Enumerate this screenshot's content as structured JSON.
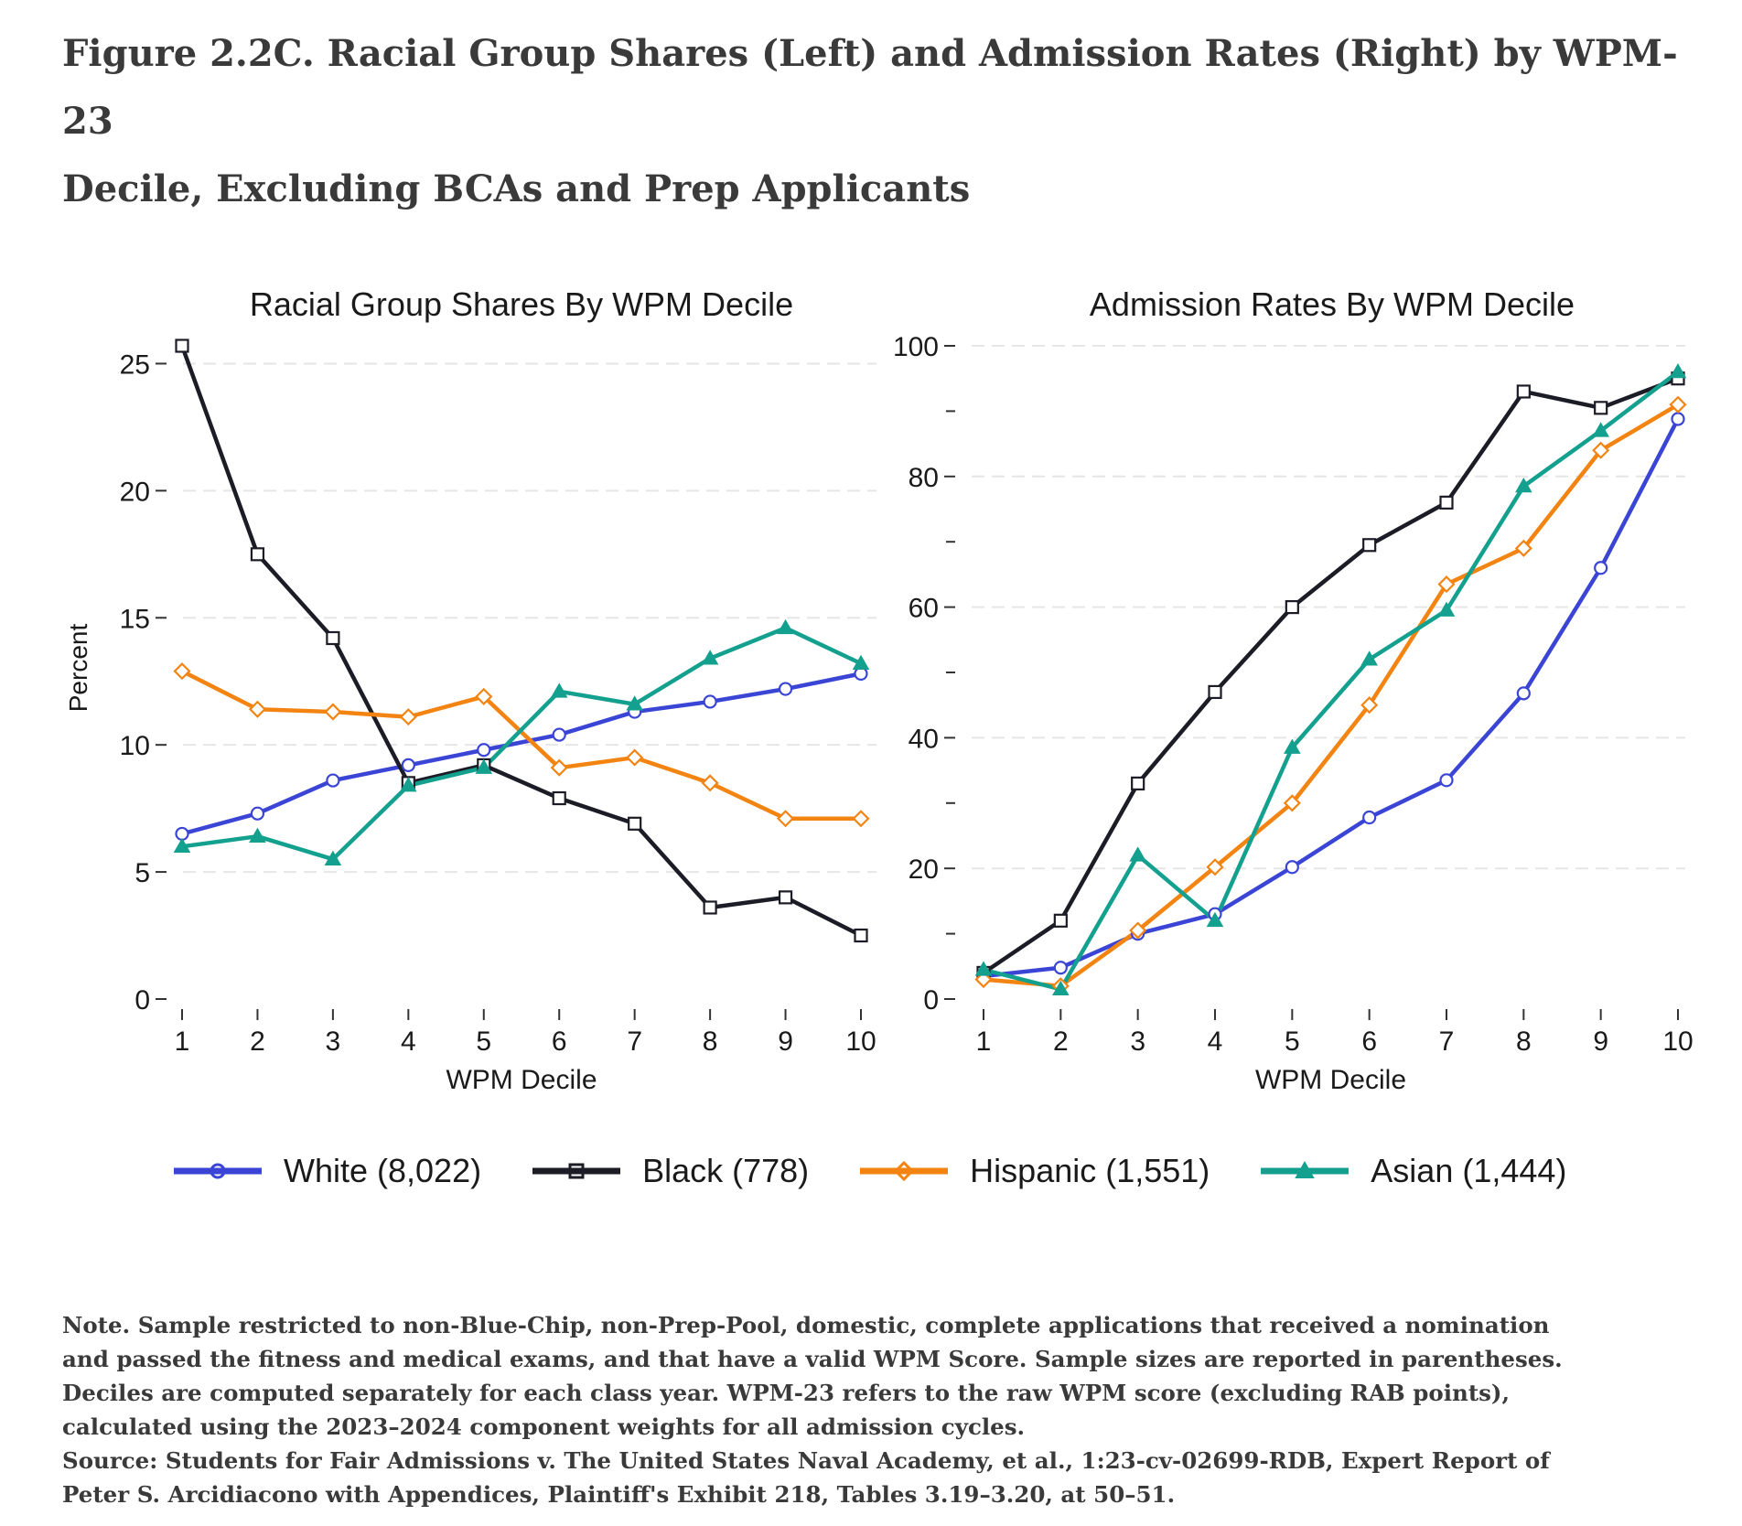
{
  "figure": {
    "title_line1": "Figure 2.2C. Racial Group Shares (Left) and Admission Rates (Right) by WPM-23",
    "title_line2": "Decile, Excluding BCAs and Prep Applicants"
  },
  "legend": [
    {
      "label": "White (8,022)",
      "color": "#3a45d6",
      "marker": "circle"
    },
    {
      "label": "Black (778)",
      "color": "#1c1c26",
      "marker": "square"
    },
    {
      "label": "Hispanic (1,551)",
      "color": "#f38412",
      "marker": "diamond"
    },
    {
      "label": "Asian (1,444)",
      "color": "#14a08e",
      "marker": "triangle"
    }
  ],
  "chart_data": [
    {
      "type": "line",
      "title": "Racial Group Shares By WPM Decile",
      "xlabel": "WPM Decile",
      "ylabel": "Percent",
      "x": [
        1,
        2,
        3,
        4,
        5,
        6,
        7,
        8,
        9,
        10
      ],
      "xticks": [
        1,
        2,
        3,
        4,
        5,
        6,
        7,
        8,
        9,
        10
      ],
      "ylim": [
        0,
        25.7
      ],
      "yticks": [
        0,
        5,
        10,
        15,
        20,
        25
      ],
      "minor_yticks": [],
      "grid": true,
      "series": [
        {
          "name": "White (8,022)",
          "color": "#3a45d6",
          "marker": "circle",
          "values": [
            6.5,
            7.3,
            8.6,
            9.2,
            9.8,
            10.4,
            11.3,
            11.7,
            12.2,
            12.8
          ]
        },
        {
          "name": "Black (778)",
          "color": "#1c1c26",
          "marker": "square",
          "values": [
            25.7,
            17.5,
            14.2,
            8.5,
            9.2,
            7.9,
            6.9,
            3.6,
            4.0,
            2.5
          ]
        },
        {
          "name": "Hispanic (1,551)",
          "color": "#f38412",
          "marker": "diamond",
          "values": [
            12.9,
            11.4,
            11.3,
            11.1,
            11.9,
            9.1,
            9.5,
            8.5,
            7.1,
            7.1
          ]
        },
        {
          "name": "Asian (1,444)",
          "color": "#14a08e",
          "marker": "triangle",
          "values": [
            6.0,
            6.4,
            5.5,
            8.4,
            9.1,
            12.1,
            11.6,
            13.4,
            14.6,
            13.2
          ]
        }
      ]
    },
    {
      "type": "line",
      "title": "Admission Rates By WPM Decile",
      "xlabel": "WPM Decile",
      "ylabel": "",
      "x": [
        1,
        2,
        3,
        4,
        5,
        6,
        7,
        8,
        9,
        10
      ],
      "xticks": [
        1,
        2,
        3,
        4,
        5,
        6,
        7,
        8,
        9,
        10
      ],
      "ylim": [
        0,
        100
      ],
      "yticks": [
        0,
        20,
        40,
        60,
        80,
        100
      ],
      "minor_yticks": [
        10,
        30,
        50,
        70,
        90
      ],
      "grid": true,
      "series": [
        {
          "name": "White (8,022)",
          "color": "#3a45d6",
          "marker": "circle",
          "values": [
            3.5,
            4.8,
            10.0,
            13.0,
            20.2,
            27.8,
            33.5,
            46.8,
            66.0,
            88.8
          ]
        },
        {
          "name": "Black (778)",
          "color": "#1c1c26",
          "marker": "square",
          "values": [
            4.0,
            12.0,
            33.0,
            47.0,
            60.0,
            69.5,
            76.0,
            93.0,
            90.5,
            95.0
          ]
        },
        {
          "name": "Hispanic (1,551)",
          "color": "#f38412",
          "marker": "diamond",
          "values": [
            3.0,
            2.0,
            10.5,
            20.2,
            30.0,
            45.0,
            63.5,
            69.0,
            84.0,
            91.0
          ]
        },
        {
          "name": "Asian (1,444)",
          "color": "#14a08e",
          "marker": "triangle",
          "values": [
            4.5,
            1.5,
            22.0,
            12.0,
            38.5,
            52.0,
            59.5,
            78.5,
            87.0,
            96.0
          ]
        }
      ]
    }
  ],
  "note": {
    "note_line1": "Note. Sample restricted to non-Blue-Chip, non-Prep-Pool, domestic, complete applications that received a nomination",
    "note_line2": "and passed the fitness and medical exams, and that have a valid WPM Score. Sample sizes are reported in parentheses.",
    "note_line3": "Deciles are computed separately for each class year. WPM-23 refers to the raw WPM score (excluding RAB points),",
    "note_line4": "calculated using the 2023–2024 component weights for all admission cycles.",
    "source_line1": "Source: Students for Fair Admissions v. The United States Naval Academy, et al., 1:23-cv-02699-RDB, Expert Report of",
    "source_line2": "Peter S. Arcidiacono with Appendices, Plaintiff's Exhibit 218, Tables 3.19–3.20, at 50–51."
  }
}
